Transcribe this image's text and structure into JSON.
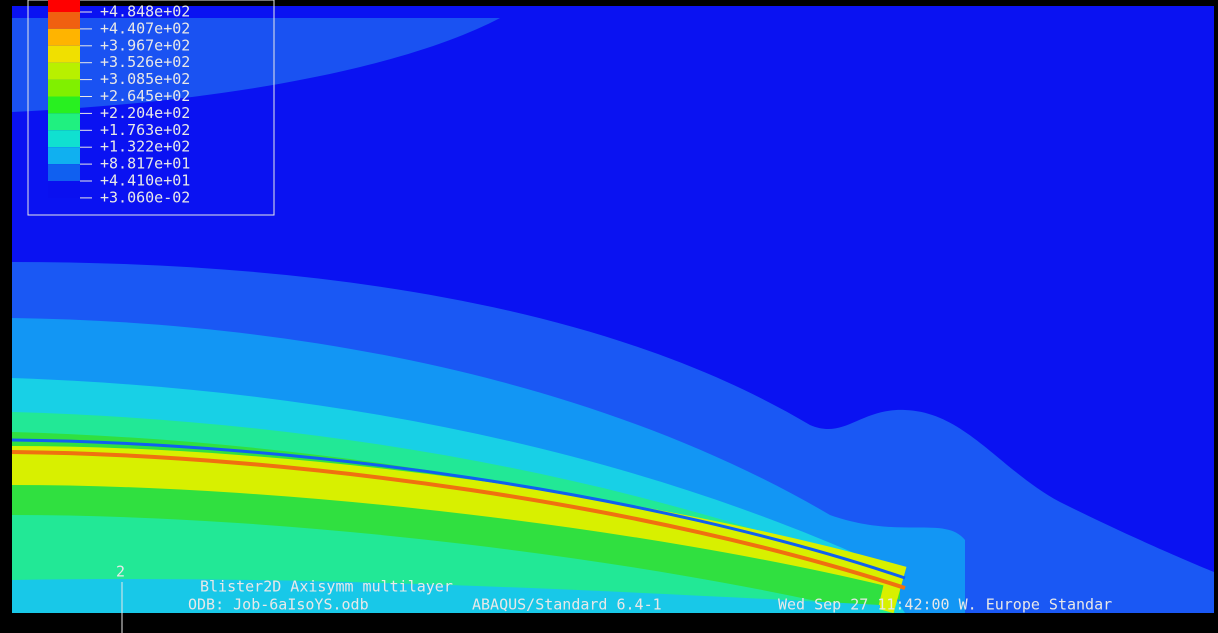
{
  "legend": {
    "labels": [
      "+4.848e+02",
      "+4.407e+02",
      "+3.967e+02",
      "+3.526e+02",
      "+3.085e+02",
      "+2.645e+02",
      "+2.204e+02",
      "+1.763e+02",
      "+1.322e+02",
      "+8.817e+01",
      "+4.410e+01",
      "+3.060e-02"
    ],
    "colors": [
      "#ff0000",
      "#f06010",
      "#ffb400",
      "#f0e000",
      "#b8f000",
      "#80f000",
      "#28f020",
      "#20f080",
      "#10e0d0",
      "#10b0f0",
      "#1060f0",
      "#0a10f0"
    ]
  },
  "viewport": {
    "triad_label": "2",
    "title": "Blister2D Axisymm multilayer",
    "odb": "ODB: Job-6aIsoYS.odb",
    "solver": "ABAQUS/Standard 6.4-1",
    "date": "Wed Sep 27 11:42:00 W. Europe Standar"
  }
}
